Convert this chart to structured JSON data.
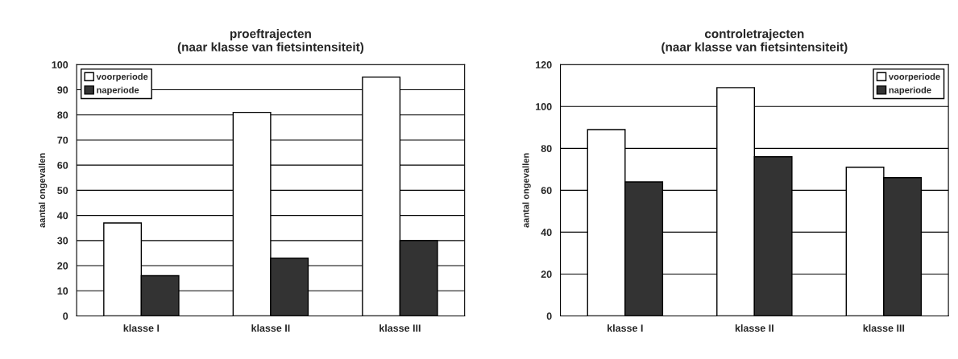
{
  "chart_data": [
    {
      "type": "bar",
      "title": "proeftrajecten\n(naar klasse van fietsintensiteit)",
      "ylabel": "aantal ongevallen",
      "categories": [
        "klasse I",
        "klasse II",
        "klasse III"
      ],
      "series": [
        {
          "name": "voorperiode",
          "color": "#ffffff",
          "values": [
            37,
            81,
            95
          ]
        },
        {
          "name": "naperiode",
          "color": "#333333",
          "values": [
            16,
            23,
            30
          ]
        }
      ],
      "ylim": [
        0,
        100
      ],
      "yticks": [
        0,
        10,
        20,
        30,
        40,
        50,
        60,
        70,
        80,
        90,
        100
      ],
      "grid": "y",
      "legend": "top left"
    },
    {
      "type": "bar",
      "title": "controletrajecten\n(naar klasse van fietsintensiteit)",
      "ylabel": "aantal ongevallen",
      "categories": [
        "klasse I",
        "klasse II",
        "klasse III"
      ],
      "series": [
        {
          "name": "voorperiode",
          "color": "#ffffff",
          "values": [
            89,
            109,
            71
          ]
        },
        {
          "name": "naperiode",
          "color": "#333333",
          "values": [
            64,
            76,
            66
          ]
        }
      ],
      "ylim": [
        0,
        120
      ],
      "yticks": [
        0,
        20,
        40,
        60,
        80,
        100,
        120
      ],
      "grid": "y",
      "legend": "top right"
    }
  ]
}
